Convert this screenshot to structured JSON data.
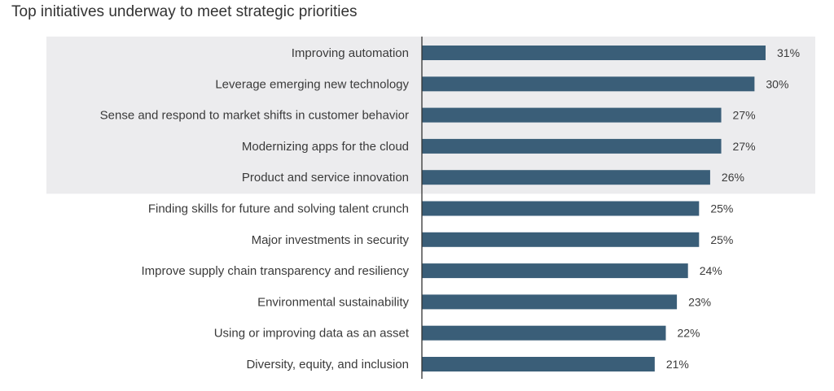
{
  "chart_data": {
    "type": "bar",
    "orientation": "horizontal",
    "title": "Top initiatives underway to meet strategic priorities",
    "categories": [
      "Improving automation",
      "Leverage emerging new technology",
      "Sense and respond to market shifts in customer behavior",
      "Modernizing apps for the cloud",
      "Product and service innovation",
      "Finding skills for future and solving talent crunch",
      "Major investments in security",
      "Improve supply chain transparency and resiliency",
      "Environmental sustainability",
      "Using or improving data as an asset",
      "Diversity, equity, and inclusion"
    ],
    "values": [
      31,
      30,
      27,
      27,
      26,
      25,
      25,
      24,
      23,
      22,
      21
    ],
    "value_labels": [
      "31%",
      "30%",
      "27%",
      "27%",
      "26%",
      "25%",
      "25%",
      "24%",
      "23%",
      "22%",
      "21%"
    ],
    "highlighted_top_n": 5,
    "xlim": [
      0,
      31
    ],
    "grid": false,
    "colors": {
      "bar": "#3a5e78",
      "highlight_band": "#ececee",
      "axis": "#333333"
    }
  }
}
